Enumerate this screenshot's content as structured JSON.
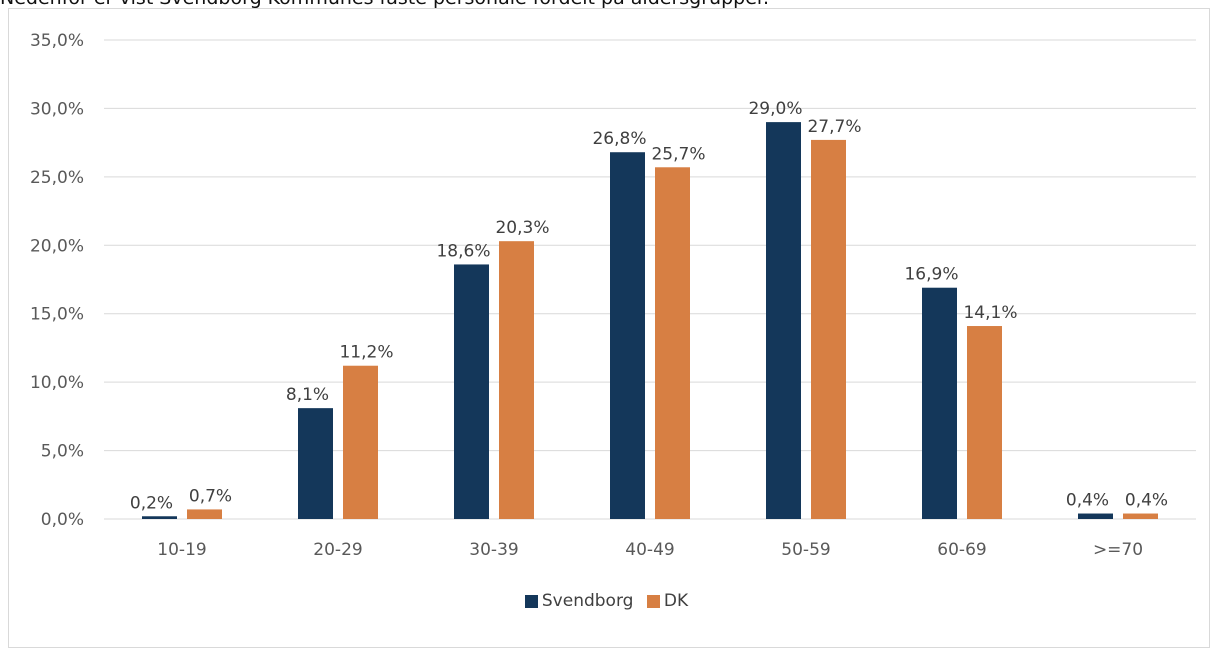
{
  "intro_text": "Nedenfor er vist Svendborg Kommunes faste personale fordelt på aldersgrupper.",
  "chart_data": {
    "type": "bar",
    "title": "",
    "xlabel": "",
    "ylabel": "",
    "categories": [
      "10-19",
      "20-29",
      "30-39",
      "40-49",
      "50-59",
      "60-69",
      ">=70"
    ],
    "series": [
      {
        "name": "Svendborg",
        "color": "#14375a",
        "values": [
          0.2,
          8.1,
          18.6,
          26.8,
          29.0,
          16.9,
          0.4
        ],
        "labels": [
          "0,2%",
          "8,1%",
          "18,6%",
          "26,8%",
          "29,0%",
          "16,9%",
          "0,4%"
        ]
      },
      {
        "name": "DK",
        "color": "#d77f43",
        "values": [
          0.7,
          11.2,
          20.3,
          25.7,
          27.7,
          14.1,
          0.4
        ],
        "labels": [
          "0,7%",
          "11,2%",
          "20,3%",
          "25,7%",
          "27,7%",
          "14,1%",
          "0,4%"
        ]
      }
    ],
    "ylim": [
      0,
      35
    ],
    "yticks": [
      0,
      5,
      10,
      15,
      20,
      25,
      30,
      35
    ],
    "ytick_labels": [
      "0,0%",
      "5,0%",
      "10,0%",
      "15,0%",
      "20,0%",
      "25,0%",
      "30,0%",
      "35,0%"
    ],
    "grid": true,
    "legend": "bottom"
  }
}
